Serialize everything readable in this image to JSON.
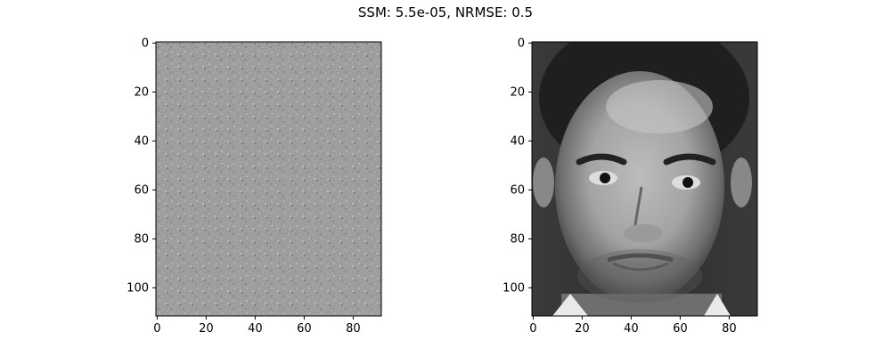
{
  "suptitle": "SSM: 5.5e-05, NRMSE: 0.5",
  "panels": [
    {
      "name": "left",
      "content": "noise-residual",
      "x_ticks": [
        "0",
        "20",
        "40",
        "60",
        "80"
      ],
      "y_ticks": [
        "0",
        "20",
        "40",
        "60",
        "80",
        "100"
      ]
    },
    {
      "name": "right",
      "content": "face-photo",
      "x_ticks": [
        "0",
        "20",
        "40",
        "60",
        "80"
      ],
      "y_ticks": [
        "0",
        "20",
        "40",
        "60",
        "80",
        "100"
      ]
    }
  ],
  "colors": {
    "noise_gray": "#8a8a8a",
    "face_dark": "#2a2a2a"
  }
}
